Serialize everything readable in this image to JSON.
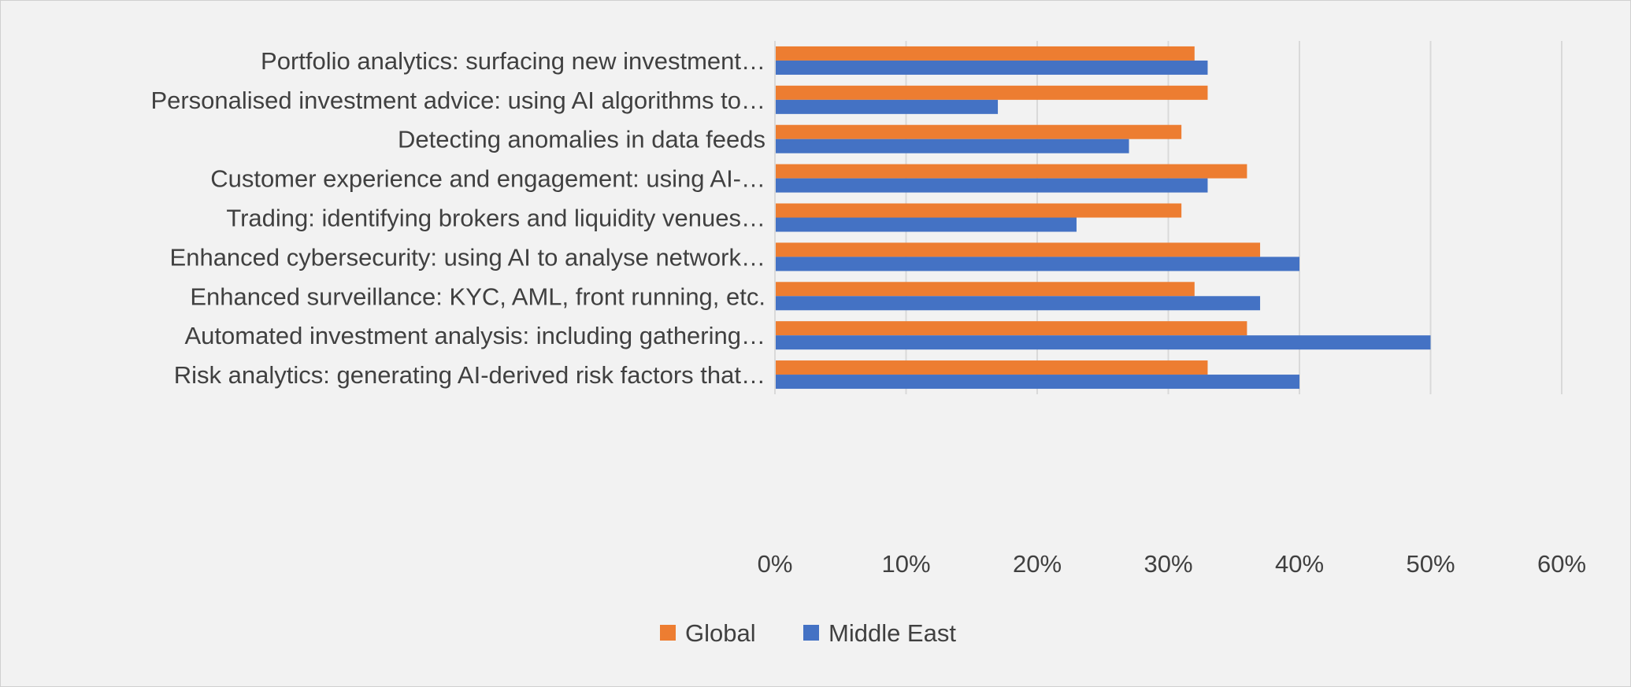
{
  "chart_data": {
    "type": "bar",
    "orientation": "horizontal",
    "categories": [
      "Risk analytics: generating AI-derived risk factors that…",
      "Automated investment analysis: including gathering…",
      "Enhanced surveillance: KYC, AML, front running, etc.",
      "Enhanced cybersecurity: using AI to analyse network…",
      "Trading: identifying brokers and liquidity venues…",
      "Customer experience and engagement: using AI-…",
      "Detecting anomalies in data feeds",
      "Personalised investment advice: using AI algorithms to…",
      "Portfolio analytics: surfacing new investment…"
    ],
    "series": [
      {
        "name": "Global",
        "color": "#ED7D31",
        "values": [
          33,
          36,
          32,
          37,
          31,
          36,
          31,
          33,
          32
        ]
      },
      {
        "name": "Middle East",
        "color": "#4472C4",
        "values": [
          40,
          50,
          37,
          40,
          23,
          33,
          27,
          17,
          33
        ]
      }
    ],
    "xlim": [
      0,
      60
    ],
    "x_ticks": [
      0,
      10,
      20,
      30,
      40,
      50,
      60
    ],
    "x_tick_labels": [
      "0%",
      "10%",
      "20%",
      "30%",
      "40%",
      "50%",
      "60%"
    ],
    "grid": true,
    "legend_position": "bottom",
    "title": "",
    "xlabel": "",
    "ylabel": ""
  }
}
